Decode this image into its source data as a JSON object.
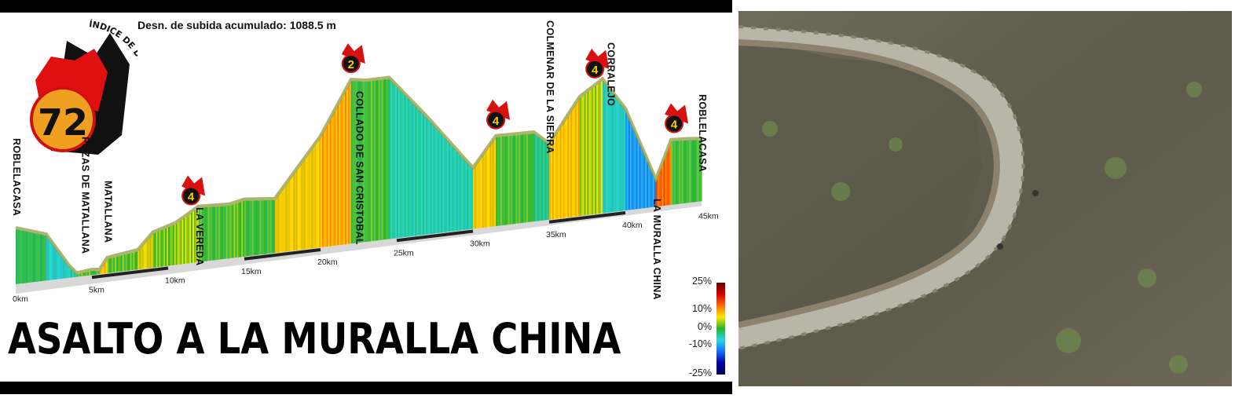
{
  "chart_data": {
    "type": "area",
    "subtitle": "Desn. de subida acumulado: 1088.5 m",
    "title": "ASALTO A LA MURALLA CHINA",
    "x_unit": "km",
    "x_ticks": [
      "0km",
      "5km",
      "10km",
      "15km",
      "20km",
      "25km",
      "30km",
      "35km",
      "40km",
      "45km"
    ],
    "xlim": [
      0,
      45
    ],
    "profile": [
      [
        0,
        1075
      ],
      [
        2,
        1043
      ],
      [
        3.5,
        935
      ],
      [
        4,
        908
      ],
      [
        5,
        913
      ],
      [
        5.5,
        910
      ],
      [
        6,
        945
      ],
      [
        8,
        958
      ],
      [
        9,
        1008
      ],
      [
        10.5,
        1030
      ],
      [
        12,
        1073
      ],
      [
        14,
        1068
      ],
      [
        15,
        1078
      ],
      [
        17,
        1068
      ],
      [
        20,
        1250
      ],
      [
        22,
        1418
      ],
      [
        23,
        1410
      ],
      [
        24.5,
        1410
      ],
      [
        27,
        1270
      ],
      [
        30,
        1090
      ],
      [
        31.5,
        1183
      ],
      [
        34,
        1180
      ],
      [
        35,
        1138
      ],
      [
        37,
        1275
      ],
      [
        38.5,
        1323
      ],
      [
        40,
        1220
      ],
      [
        42,
        983
      ],
      [
        43,
        1103
      ],
      [
        44,
        1100
      ],
      [
        45,
        1095
      ]
    ],
    "color_scale": {
      "label_ticks": [
        "25%",
        "10%",
        "0%",
        "-10%",
        "-25%"
      ],
      "range": [
        -25,
        25
      ],
      "colors": [
        "#00005a",
        "#1a6bff",
        "#25d8e0",
        "#2bb32b",
        "#ffe600",
        "#ff6a00",
        "#d40000",
        "#6b0000"
      ]
    },
    "places": [
      {
        "km": 0,
        "name": "ROBLELACASA"
      },
      {
        "km": 4.5,
        "name": "POZAS DE MATALLANA"
      },
      {
        "km": 6,
        "name": "MATALLANA"
      },
      {
        "km": 12,
        "name": "LA VEREDA"
      },
      {
        "km": 22.5,
        "name": "COLLADO DE SAN CRISTOBAL"
      },
      {
        "km": 35,
        "name": "COLMENAR DE LA SIERRA"
      },
      {
        "km": 39,
        "name": "CORRALEJO"
      },
      {
        "km": 42,
        "name": "LA MURALLA CHINA"
      },
      {
        "km": 45,
        "name": "ROBLELACASA"
      }
    ],
    "climbs": [
      {
        "km": 11.5,
        "category": "4"
      },
      {
        "km": 22,
        "category": "2"
      },
      {
        "km": 31.5,
        "category": "4"
      },
      {
        "km": 38,
        "category": "4"
      },
      {
        "km": 43.2,
        "category": "4"
      }
    ]
  },
  "logo": {
    "number": "72",
    "text": "ÍNDICE DE DIFICULTAD"
  },
  "photo": {
    "description_icon": "road-photo"
  }
}
